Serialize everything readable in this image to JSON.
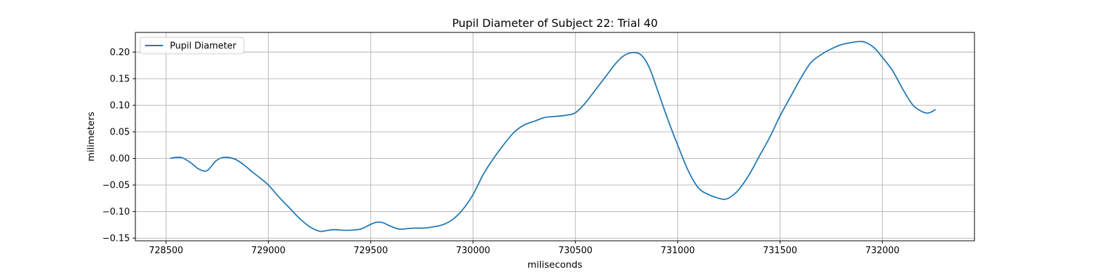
{
  "chart_data": {
    "type": "line",
    "title": "Pupil Diameter of Subject 22: Trial 40",
    "xlabel": "miliseconds",
    "ylabel": "milimeters",
    "xlim": [
      728350,
      732450
    ],
    "ylim": [
      -0.155,
      0.237
    ],
    "x_ticks": [
      728500,
      729000,
      729500,
      730000,
      730500,
      731000,
      731500,
      732000
    ],
    "x_tick_labels": [
      "728500",
      "729000",
      "729500",
      "730000",
      "730500",
      "731000",
      "731500",
      "732000"
    ],
    "y_ticks": [
      -0.15,
      -0.1,
      -0.05,
      0.0,
      0.05,
      0.1,
      0.15,
      0.2
    ],
    "y_tick_labels": [
      "−0.15",
      "−0.10",
      "−0.05",
      "0.00",
      "0.05",
      "0.10",
      "0.15",
      "0.20"
    ],
    "grid": true,
    "legend_position": "top-left",
    "series": [
      {
        "name": "Pupil Diameter",
        "color": "#1f77b4",
        "x": [
          728520,
          728550,
          728580,
          728620,
          728660,
          728700,
          728740,
          728770,
          728800,
          728840,
          728880,
          728920,
          728960,
          729000,
          729050,
          729100,
          729150,
          729200,
          729250,
          729280,
          729320,
          729360,
          729400,
          729450,
          729500,
          729530,
          729560,
          729600,
          729640,
          729680,
          729720,
          729760,
          729800,
          729850,
          729900,
          729950,
          730000,
          730050,
          730100,
          730150,
          730200,
          730250,
          730300,
          730350,
          730400,
          730450,
          730500,
          730550,
          730600,
          730650,
          730700,
          730740,
          730780,
          730820,
          730860,
          730900,
          730950,
          731000,
          731050,
          731100,
          731150,
          731200,
          731230,
          731260,
          731300,
          731350,
          731400,
          731450,
          731500,
          731550,
          731600,
          731650,
          731700,
          731750,
          731800,
          731850,
          731890,
          731920,
          731960,
          732000,
          732050,
          732100,
          732150,
          732200,
          732230,
          732260
        ],
        "y": [
          0.0,
          0.002,
          0.001,
          -0.008,
          -0.02,
          -0.023,
          -0.006,
          0.001,
          0.002,
          -0.002,
          -0.012,
          -0.025,
          -0.037,
          -0.05,
          -0.072,
          -0.092,
          -0.112,
          -0.128,
          -0.137,
          -0.136,
          -0.134,
          -0.135,
          -0.135,
          -0.133,
          -0.124,
          -0.12,
          -0.121,
          -0.128,
          -0.133,
          -0.132,
          -0.131,
          -0.131,
          -0.129,
          -0.125,
          -0.115,
          -0.096,
          -0.068,
          -0.03,
          0.0,
          0.026,
          0.049,
          0.063,
          0.07,
          0.077,
          0.079,
          0.081,
          0.086,
          0.105,
          0.13,
          0.155,
          0.18,
          0.194,
          0.199,
          0.195,
          0.172,
          0.13,
          0.075,
          0.025,
          -0.022,
          -0.055,
          -0.068,
          -0.075,
          -0.077,
          -0.072,
          -0.058,
          -0.03,
          0.005,
          0.04,
          0.08,
          0.115,
          0.15,
          0.18,
          0.195,
          0.206,
          0.214,
          0.218,
          0.22,
          0.218,
          0.208,
          0.19,
          0.165,
          0.13,
          0.1,
          0.087,
          0.086,
          0.092
        ]
      }
    ]
  }
}
